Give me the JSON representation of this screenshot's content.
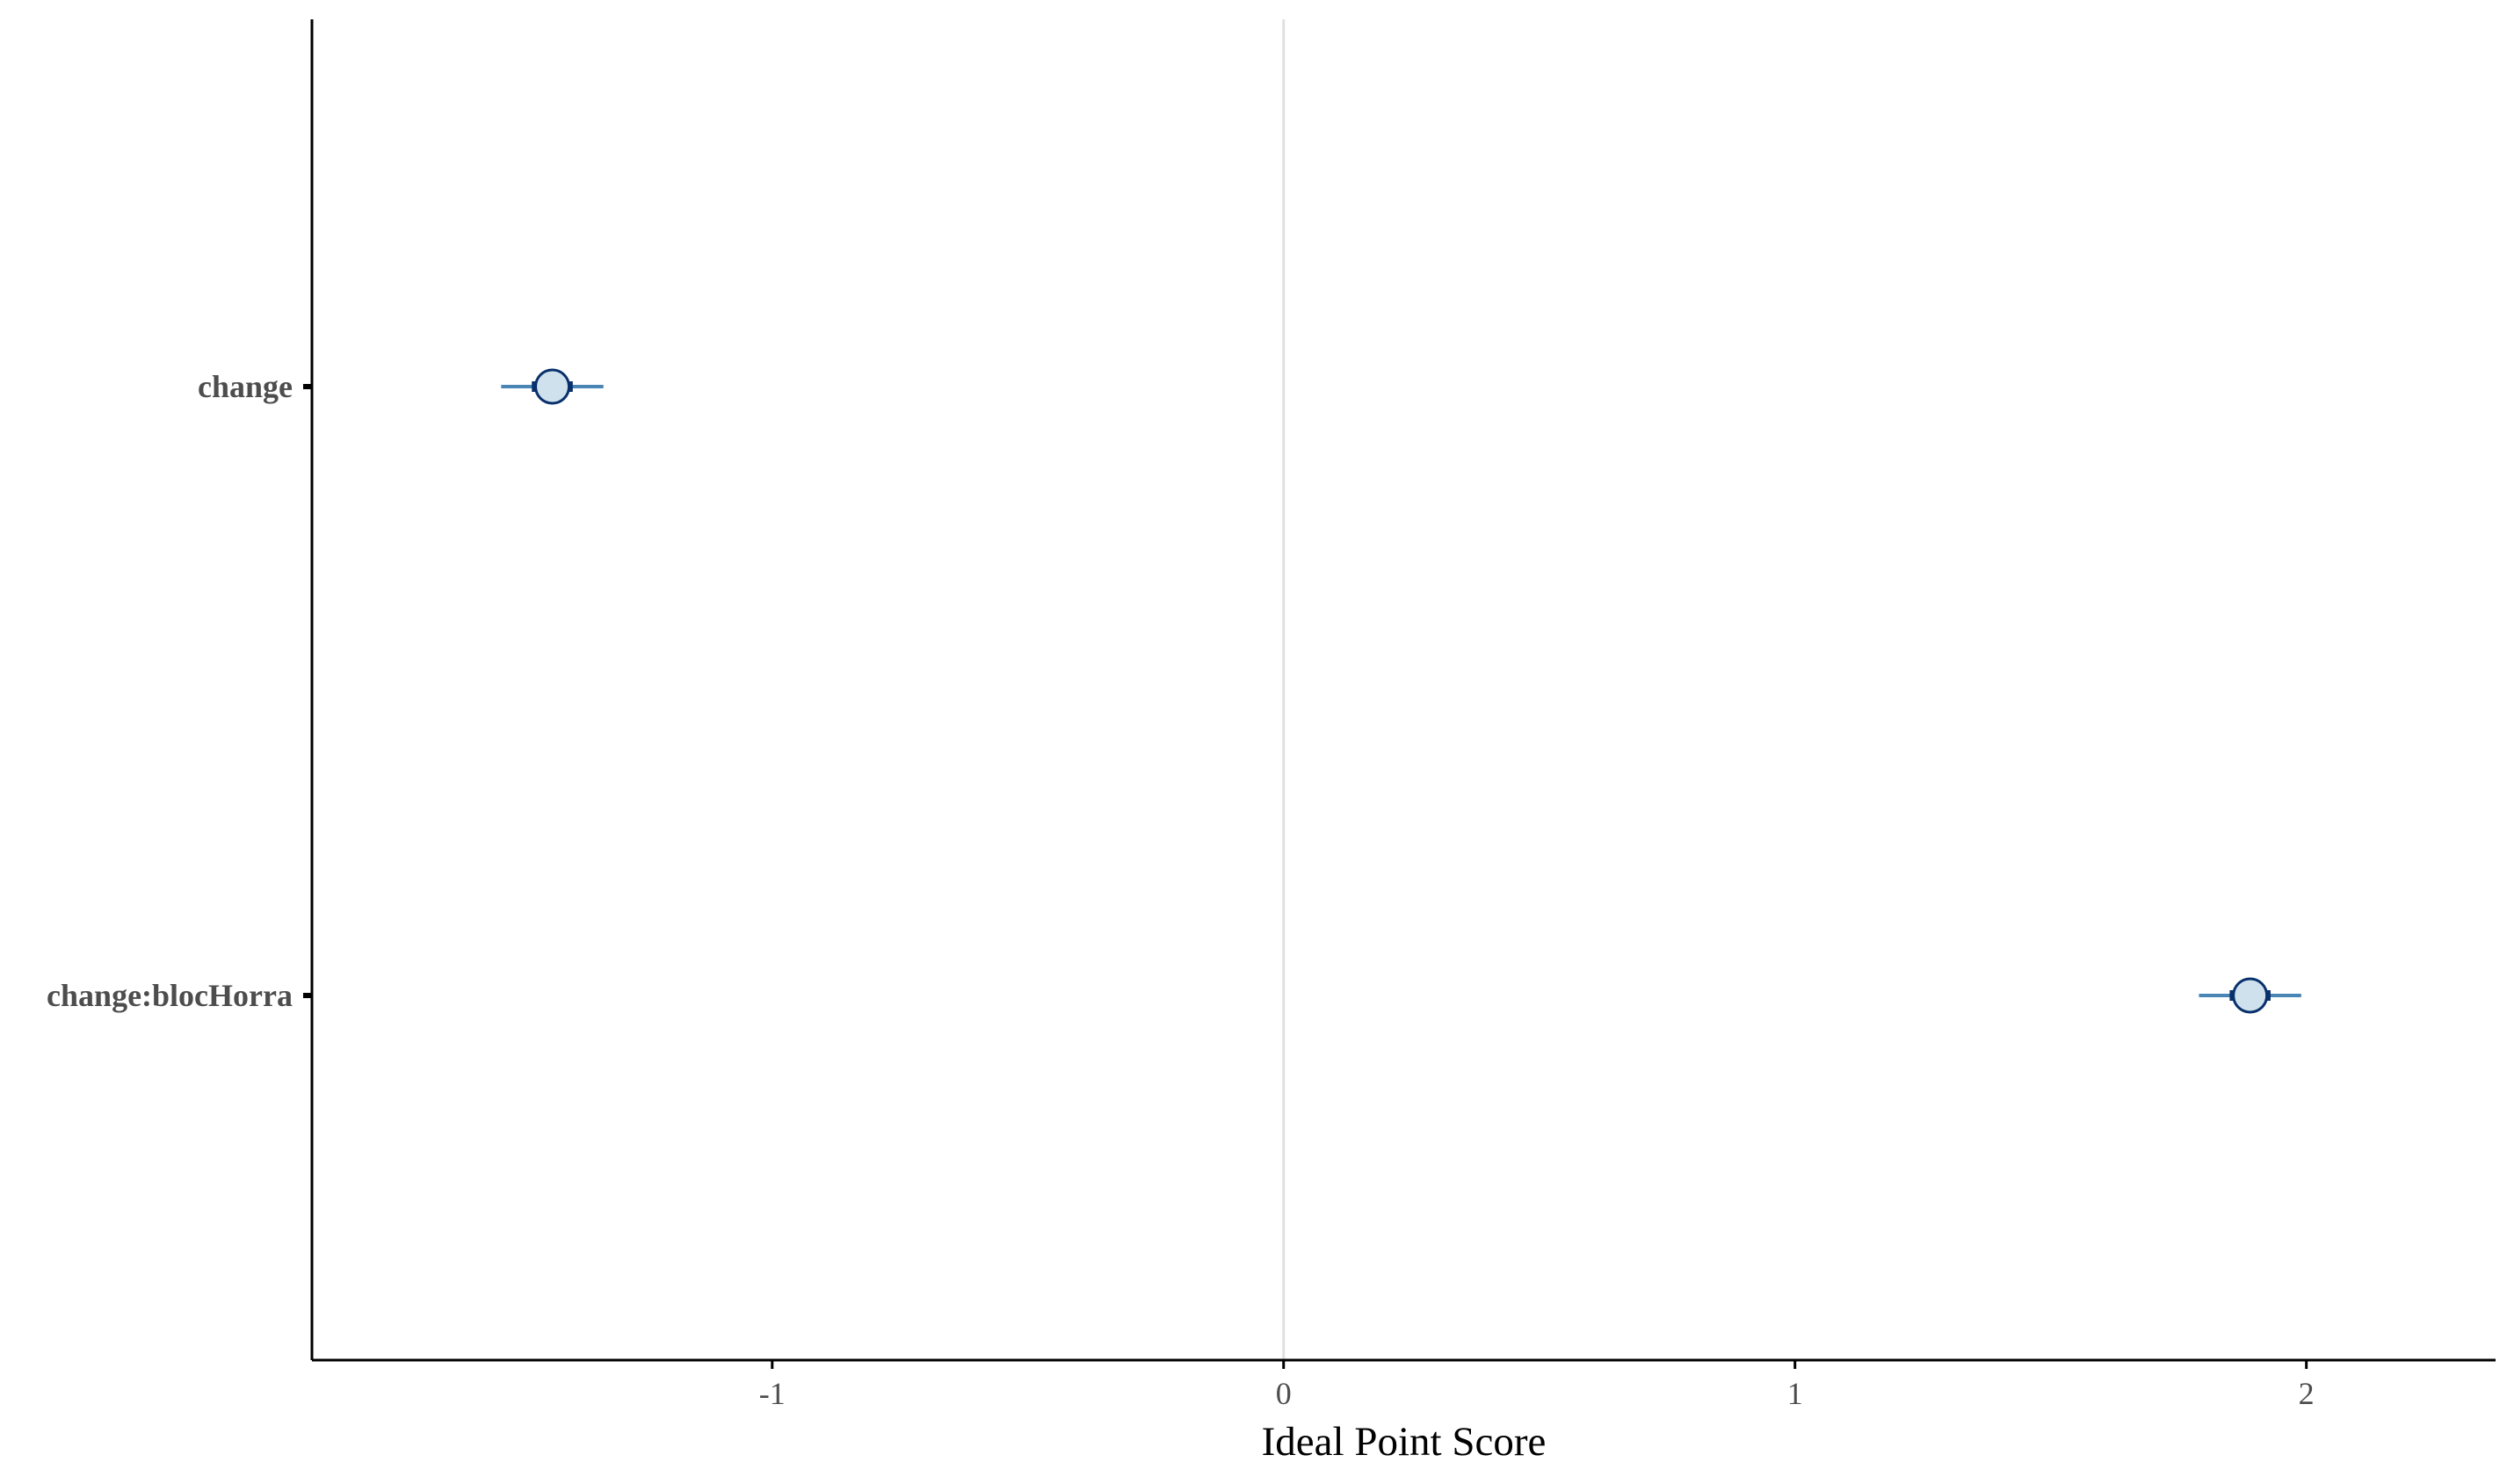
{
  "chart_data": {
    "type": "scatter",
    "subtype": "coefficient-plot",
    "title": "",
    "xlabel": "Ideal Point Score",
    "ylabel": "",
    "xlim": [
      -1.9,
      2.37
    ],
    "x_ticks": [
      -1,
      0,
      1,
      2
    ],
    "x_tick_labels": [
      "-1",
      "0",
      "1",
      "2"
    ],
    "categories": [
      "change",
      "change:blocHorra"
    ],
    "points": [
      {
        "label": "change",
        "estimate": -1.43,
        "inner_low": -1.47,
        "inner_high": -1.39,
        "outer_low": -1.53,
        "outer_high": -1.33
      },
      {
        "label": "change:blocHorra",
        "estimate": 1.89,
        "inner_low": 1.85,
        "inner_high": 1.93,
        "outer_low": 1.79,
        "outer_high": 1.99
      }
    ],
    "reference_line": 0,
    "grid": false,
    "legend": "none",
    "colors": {
      "point_fill": "#d0e1ee",
      "point_stroke": "#08306b",
      "outer_interval": "#4a86b5",
      "inner_interval": "#08306b",
      "reference_line": "#e0e0e0",
      "axis": "#000000",
      "tick_label": "#4d4d4d"
    }
  }
}
